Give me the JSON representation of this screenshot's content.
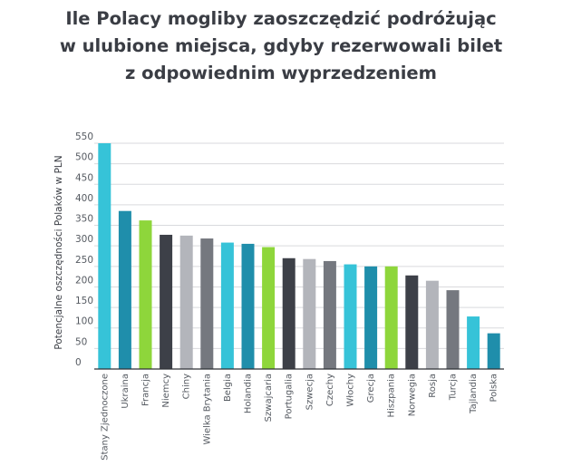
{
  "chart_data": {
    "type": "bar",
    "title_lines": [
      "Ile Polacy mogliby zaoszczędzić podróżując",
      "w ulubione miejsca, gdyby rezerwowali bilet",
      "z odpowiednim wyprzedzeniem"
    ],
    "xlabel": "",
    "ylabel": "Potencjalne oszczędności Polaków w PLN",
    "ylim": [
      0,
      550
    ],
    "yticks": [
      0,
      50,
      100,
      150,
      200,
      250,
      300,
      350,
      400,
      450,
      500,
      550
    ],
    "grid": true,
    "legend": "none",
    "categories": [
      "Stany Zjednoczone",
      "Ukraina",
      "Francja",
      "Niemcy",
      "Chiny",
      "Wielka Brytania",
      "Belgia",
      "Holandia",
      "Szwajcaria",
      "Portugalia",
      "Szwecja",
      "Czechy",
      "Włochy",
      "Grecja",
      "Hiszpania",
      "Norwegia",
      "Rosja",
      "Turcja",
      "Tajlandia",
      "Polska"
    ],
    "values": [
      550,
      385,
      362,
      327,
      325,
      318,
      308,
      305,
      297,
      270,
      268,
      263,
      255,
      250,
      250,
      228,
      215,
      192,
      128,
      87
    ],
    "colors": [
      "#36c3d8",
      "#1f8eab",
      "#8ed63b",
      "#3d4048",
      "#b3b5bb",
      "#75787f",
      "#36c3d8",
      "#1f8eab",
      "#8ed63b",
      "#3d4048",
      "#b3b5bb",
      "#75787f",
      "#36c3d8",
      "#1f8eab",
      "#8ed63b",
      "#3d4048",
      "#b3b5bb",
      "#75787f",
      "#36c3d8",
      "#1f8eab"
    ]
  }
}
